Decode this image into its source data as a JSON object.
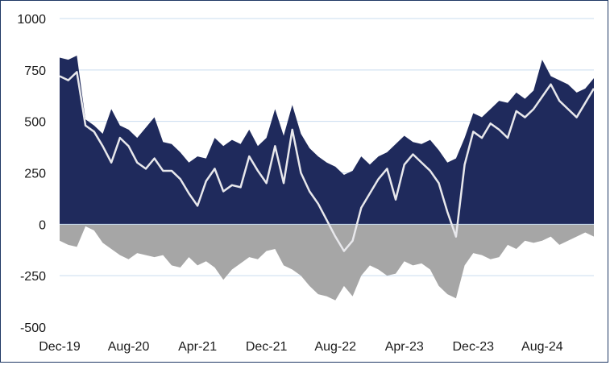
{
  "chart_data": {
    "type": "area",
    "title": "",
    "xlabel": "",
    "ylabel": "",
    "ylim": [
      -500,
      1000
    ],
    "yticks": [
      1000,
      750,
      500,
      250,
      0,
      -250,
      -500
    ],
    "grid": "horizontal",
    "legend": "none",
    "x_ticks": [
      "Dec-19",
      "Aug-20",
      "Apr-21",
      "Dec-21",
      "Aug-22",
      "Apr-23",
      "Dec-23",
      "Aug-24"
    ],
    "x": [
      "Dec-19",
      "Jan-20",
      "Feb-20",
      "Mar-20",
      "Apr-20",
      "May-20",
      "Jun-20",
      "Jul-20",
      "Aug-20",
      "Sep-20",
      "Oct-20",
      "Nov-20",
      "Dec-20",
      "Jan-21",
      "Feb-21",
      "Mar-21",
      "Apr-21",
      "May-21",
      "Jun-21",
      "Jul-21",
      "Aug-21",
      "Sep-21",
      "Oct-21",
      "Nov-21",
      "Dec-21",
      "Jan-22",
      "Feb-22",
      "Mar-22",
      "Apr-22",
      "May-22",
      "Jun-22",
      "Jul-22",
      "Aug-22",
      "Sep-22",
      "Oct-22",
      "Nov-22",
      "Dec-22",
      "Jan-23",
      "Feb-23",
      "Mar-23",
      "Apr-23",
      "May-23",
      "Jun-23",
      "Jul-23",
      "Aug-23",
      "Sep-23",
      "Oct-23",
      "Nov-23",
      "Dec-23",
      "Jan-24",
      "Feb-24",
      "Mar-24",
      "Apr-24",
      "May-24",
      "Jun-24",
      "Jul-24",
      "Aug-24",
      "Sep-24",
      "Oct-24",
      "Nov-24",
      "Dec-24",
      "Jan-25",
      "Feb-25"
    ],
    "series": [
      {
        "type": "area",
        "color": "#1f2a5c",
        "values": [
          810,
          800,
          820,
          510,
          480,
          440,
          560,
          480,
          460,
          420,
          470,
          520,
          400,
          390,
          350,
          300,
          330,
          320,
          420,
          380,
          410,
          390,
          460,
          380,
          420,
          560,
          430,
          580,
          440,
          370,
          330,
          300,
          280,
          240,
          260,
          330,
          290,
          330,
          350,
          390,
          430,
          400,
          390,
          410,
          360,
          300,
          320,
          420,
          540,
          520,
          560,
          600,
          590,
          640,
          610,
          650,
          800,
          720,
          700,
          680,
          640,
          660,
          710
        ]
      },
      {
        "type": "area",
        "color": "#a6a6a6",
        "values": [
          -80,
          -100,
          -110,
          -10,
          -30,
          -90,
          -120,
          -150,
          -170,
          -140,
          -150,
          -160,
          -150,
          -200,
          -210,
          -160,
          -200,
          -180,
          -210,
          -270,
          -220,
          -190,
          -160,
          -170,
          -130,
          -120,
          -200,
          -220,
          -250,
          -300,
          -340,
          -350,
          -370,
          -300,
          -350,
          -250,
          -200,
          -220,
          -250,
          -240,
          -180,
          -200,
          -190,
          -220,
          -300,
          -340,
          -360,
          -200,
          -140,
          -150,
          -170,
          -160,
          -100,
          -120,
          -80,
          -90,
          -80,
          -60,
          -100,
          -80,
          -60,
          -40,
          -60
        ]
      },
      {
        "type": "line",
        "color": "#e8e8ec",
        "values": [
          720,
          700,
          740,
          480,
          450,
          380,
          300,
          420,
          380,
          300,
          270,
          320,
          260,
          260,
          220,
          150,
          90,
          210,
          270,
          160,
          190,
          180,
          330,
          260,
          200,
          380,
          200,
          460,
          250,
          160,
          100,
          20,
          -60,
          -130,
          -80,
          80,
          150,
          220,
          270,
          120,
          290,
          340,
          300,
          260,
          200,
          60,
          -60,
          290,
          450,
          420,
          490,
          460,
          420,
          550,
          520,
          560,
          620,
          680,
          600,
          560,
          520,
          590,
          660
        ]
      }
    ]
  }
}
